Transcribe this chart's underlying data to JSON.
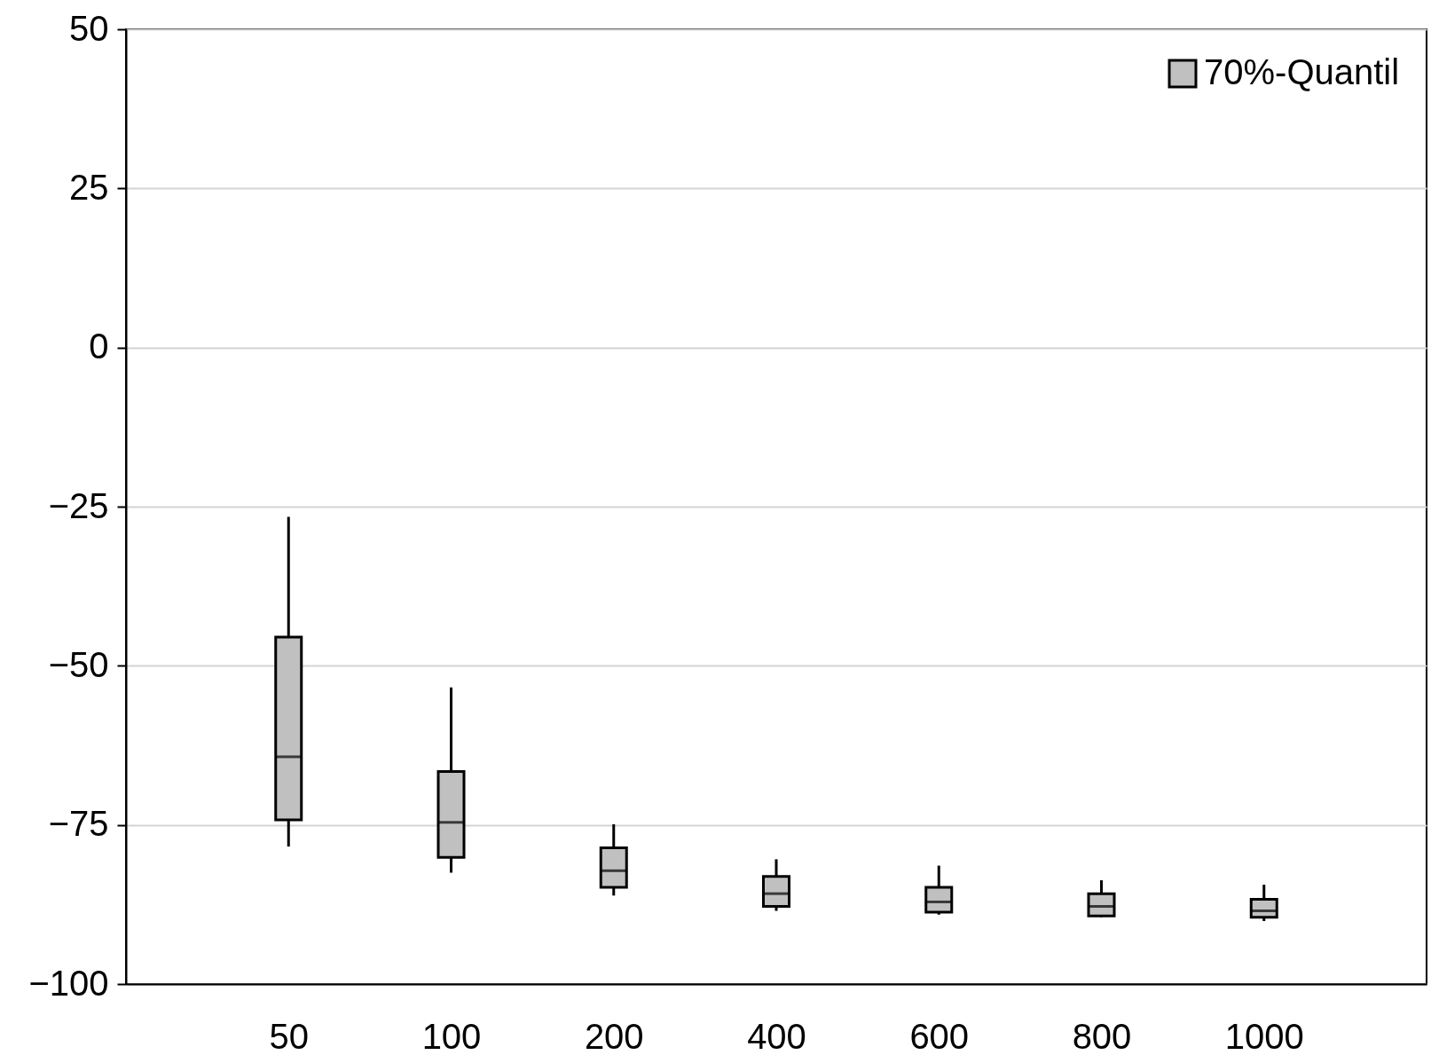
{
  "chart_data": {
    "type": "box",
    "categories": [
      "50",
      "100",
      "200",
      "400",
      "600",
      "800",
      "1000"
    ],
    "ylim": [
      -100,
      50
    ],
    "yticks": [
      -100,
      -75,
      -50,
      -25,
      0,
      25,
      50
    ],
    "grid": "y",
    "legend": "top right",
    "series": [
      {
        "name": "70%-Quantil",
        "color": "#c0c0c0",
        "boxes": [
          {
            "low": -78.4,
            "q1": -74.2,
            "median": -64.3,
            "q3": -45.5,
            "high": -26.6
          },
          {
            "low": -82.5,
            "q1": -80.1,
            "median": -74.6,
            "q3": -66.6,
            "high": -53.4
          },
          {
            "low": -86.1,
            "q1": -84.8,
            "median": -82.2,
            "q3": -78.6,
            "high": -74.9
          },
          {
            "low": -88.5,
            "q1": -87.8,
            "median": -85.8,
            "q3": -83.1,
            "high": -80.4
          },
          {
            "low": -89.1,
            "q1": -88.7,
            "median": -87.1,
            "q3": -84.8,
            "high": -81.4
          },
          {
            "low": -89.5,
            "q1": -89.3,
            "median": -87.8,
            "q3": -85.8,
            "high": -83.7
          },
          {
            "low": -90.1,
            "q1": -89.5,
            "median": -88.5,
            "q3": -86.7,
            "high": -84.4
          }
        ]
      }
    ]
  }
}
